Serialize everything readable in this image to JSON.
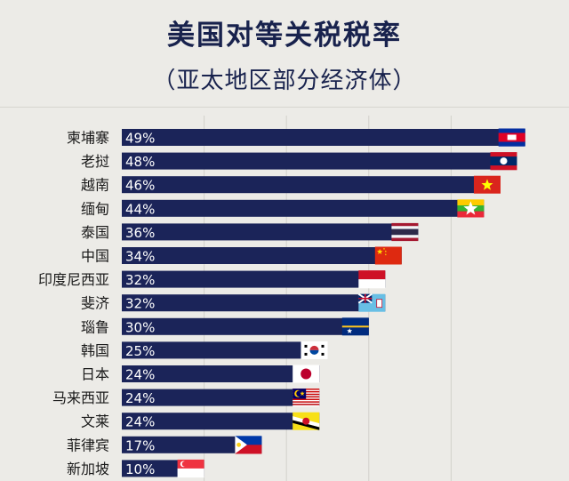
{
  "title": "美国对等关税税率",
  "subtitle": "（亚太地区部分经济体）",
  "chart_data": {
    "type": "bar",
    "orientation": "horizontal",
    "title": "美国对等关税税率",
    "subtitle": "（亚太地区部分经济体）",
    "categories": [
      "柬埔寨",
      "老挝",
      "越南",
      "缅甸",
      "泰国",
      "中国",
      "印度尼西亚",
      "斐济",
      "瑙鲁",
      "韩国",
      "日本",
      "马来西亚",
      "文莱",
      "菲律宾",
      "新加坡"
    ],
    "values": [
      49,
      48,
      46,
      44,
      36,
      34,
      32,
      32,
      30,
      25,
      24,
      24,
      24,
      17,
      10
    ],
    "value_labels": [
      "49%",
      "48%",
      "46%",
      "44%",
      "36%",
      "34%",
      "32%",
      "32%",
      "30%",
      "25%",
      "24%",
      "24%",
      "24%",
      "17%",
      "10%"
    ],
    "value_unit": "%",
    "xlim": [
      0,
      50
    ],
    "grid": true,
    "legend": "none",
    "bar_color": "#1b2459",
    "label_color": "#ffffff",
    "flag_icons": [
      "cambodia-flag-icon",
      "laos-flag-icon",
      "vietnam-flag-icon",
      "myanmar-flag-icon",
      "thailand-flag-icon",
      "china-flag-icon",
      "indonesia-flag-icon",
      "fiji-flag-icon",
      "nauru-flag-icon",
      "south-korea-flag-icon",
      "japan-flag-icon",
      "malaysia-flag-icon",
      "brunei-flag-icon",
      "philippines-flag-icon",
      "singapore-flag-icon"
    ]
  }
}
